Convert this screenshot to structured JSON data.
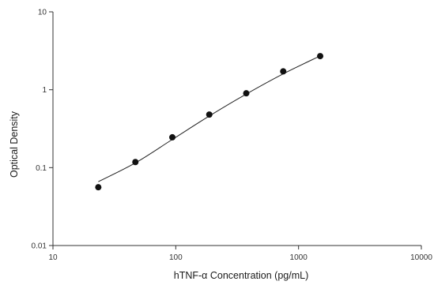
{
  "chart_data": {
    "type": "scatter",
    "xlabel": "hTNF-α Concentration (pg/mL)",
    "ylabel": "Optical Density",
    "x_scale": "log",
    "y_scale": "log",
    "xlim": [
      10,
      10000
    ],
    "ylim": [
      0.01,
      10
    ],
    "x_ticks": [
      10,
      100,
      1000,
      10000
    ],
    "x_tick_labels": [
      "10",
      "100",
      "1000",
      "10000"
    ],
    "y_ticks": [
      0.01,
      0.1,
      1,
      10
    ],
    "y_tick_labels": [
      "0.01",
      "0.1",
      "1",
      "10"
    ],
    "grid": false,
    "legend": "none",
    "series": [
      {
        "type": "scatter",
        "x": [
          23.4,
          46.9,
          93.8,
          187.5,
          375,
          750,
          1500
        ],
        "y": [
          0.056,
          0.118,
          0.245,
          0.48,
          0.9,
          1.72,
          2.7
        ]
      },
      {
        "type": "line",
        "x": [
          23.4,
          46.9,
          93.8,
          187.5,
          375,
          750,
          1500
        ],
        "y": [
          0.066,
          0.115,
          0.23,
          0.46,
          0.88,
          1.6,
          2.72
        ]
      }
    ],
    "colors": {
      "points": "#111111",
      "curve": "#222222",
      "axes": "#333333"
    }
  }
}
